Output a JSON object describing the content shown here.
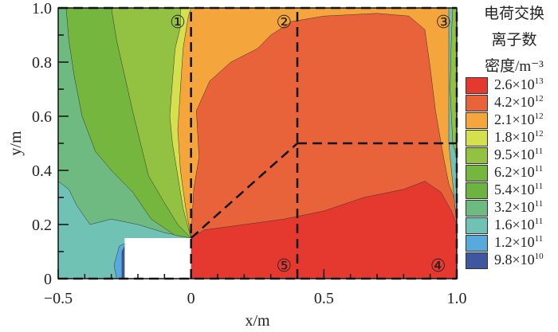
{
  "chart_data": {
    "type": "heatmap",
    "subtype": "filled-contour",
    "xlabel": "x/m",
    "ylabel": "y/m",
    "xlim": [
      -0.5,
      1.0
    ],
    "ylim": [
      0,
      1.0
    ],
    "xticks": [
      "-0.5",
      "0",
      "0.5",
      "1.0"
    ],
    "yticks": [
      "0",
      "0.2",
      "0.4",
      "0.6",
      "0.8",
      "1.0"
    ],
    "grid": false,
    "legend": {
      "title": [
        "电荷交换",
        "离子数",
        "密度/m⁻³"
      ],
      "placement": "right",
      "levels": [
        {
          "mant": "2.6×10",
          "exp": "13",
          "color": "#e5392f"
        },
        {
          "mant": "4.2×10",
          "exp": "12",
          "color": "#e9633a"
        },
        {
          "mant": "2.1×10",
          "exp": "12",
          "color": "#f4a53c"
        },
        {
          "mant": "1.8×10",
          "exp": "12",
          "color": "#d5e04f"
        },
        {
          "mant": "9.5×10",
          "exp": "11",
          "color": "#93c243"
        },
        {
          "mant": "6.2×10",
          "exp": "11",
          "color": "#74b63e"
        },
        {
          "mant": "5.4×10",
          "exp": "11",
          "color": "#6db340"
        },
        {
          "mant": "3.2×10",
          "exp": "11",
          "color": "#6fba80"
        },
        {
          "mant": "1.6×10",
          "exp": "11",
          "color": "#70c2b5"
        },
        {
          "mant": "1.2×10",
          "exp": "11",
          "color": "#57aadb"
        },
        {
          "mant": "9.8×10",
          "exp": "10",
          "color": "#3f579f"
        }
      ]
    },
    "region_labels": [
      "①",
      "②",
      "③",
      "④",
      "⑤"
    ]
  }
}
